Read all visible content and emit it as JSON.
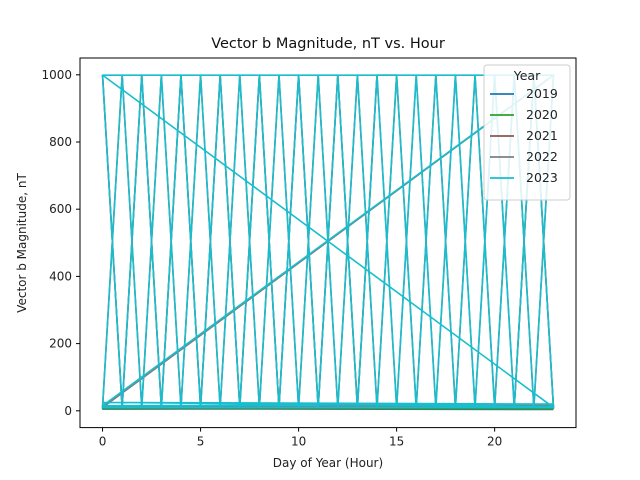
{
  "chart_data": {
    "type": "line",
    "title": "Vector b Magnitude, nT vs. Hour",
    "xlabel": "Day of Year (Hour)",
    "ylabel": "Vector b Magnitude, nT",
    "xlim": [
      -1.15,
      24.15
    ],
    "ylim": [
      -50,
      1050
    ],
    "xticks": [
      0,
      5,
      10,
      15,
      20
    ],
    "yticks": [
      0,
      200,
      400,
      600,
      800,
      1000
    ],
    "grid": false,
    "legend": {
      "title": "Year",
      "placement": "upper-right"
    },
    "series": [
      {
        "name": "2019",
        "color": "#1f77b4",
        "x": [
          0,
          23,
          0,
          23
        ],
        "y": [
          5,
          8,
          6,
          4
        ]
      },
      {
        "name": "2020",
        "color": "#2ca02c",
        "x": [
          0,
          23,
          0,
          23
        ],
        "y": [
          7,
          9,
          8,
          6
        ]
      },
      {
        "name": "2021",
        "color": "#8c564b",
        "x": [
          0,
          1,
          2,
          3,
          4,
          5,
          6,
          7,
          8,
          9,
          10,
          11,
          12,
          13,
          14,
          15,
          16,
          17,
          18,
          19,
          20,
          21,
          22,
          23,
          0,
          1,
          2,
          3,
          4,
          5,
          6,
          7,
          8,
          9,
          10,
          11,
          12,
          13,
          14,
          15,
          16,
          17,
          18,
          19,
          20,
          21,
          22,
          23
        ],
        "y": [
          999,
          10,
          999,
          10,
          999,
          10,
          999,
          10,
          999,
          10,
          999,
          10,
          999,
          10,
          999,
          999,
          10,
          999,
          10,
          999,
          10,
          999,
          10,
          999,
          10,
          999,
          10,
          999,
          10,
          999,
          10,
          999,
          10,
          999,
          10,
          999,
          10,
          999,
          10,
          999,
          10,
          999,
          10,
          999,
          10,
          10,
          999,
          10
        ]
      },
      {
        "name": "2022",
        "color": "#7f7f7f",
        "x": [
          0,
          1,
          2,
          3,
          4,
          5,
          6,
          7,
          8,
          9,
          10,
          11,
          12,
          13,
          14,
          15,
          16,
          17,
          18,
          19,
          20,
          21,
          22,
          23,
          0,
          23,
          0,
          23
        ],
        "y": [
          999,
          10,
          999,
          10,
          999,
          10,
          999,
          10,
          999,
          10,
          999,
          10,
          999,
          10,
          999,
          10,
          999,
          10,
          999,
          10,
          999,
          10,
          999,
          10,
          10,
          999,
          12,
          15
        ]
      },
      {
        "name": "2023",
        "color": "#17becf",
        "x": [
          0,
          23,
          0,
          1,
          2,
          3,
          4,
          5,
          6,
          7,
          8,
          9,
          10,
          11,
          12,
          13,
          14,
          15,
          16,
          17,
          18,
          19,
          20,
          21,
          22,
          23,
          0,
          1,
          2,
          3,
          4,
          5,
          6,
          7,
          8,
          9,
          10,
          11,
          12,
          13,
          14,
          15,
          16,
          17,
          18,
          19,
          20,
          21,
          22,
          23,
          0,
          23,
          0,
          23,
          0,
          23
        ],
        "y": [
          999,
          10,
          10,
          999,
          10,
          999,
          10,
          999,
          10,
          999,
          10,
          999,
          10,
          999,
          10,
          999,
          10,
          999,
          10,
          999,
          10,
          999,
          10,
          999,
          10,
          999,
          999,
          10,
          999,
          10,
          999,
          10,
          999,
          10,
          999,
          10,
          999,
          10,
          999,
          10,
          999,
          10,
          999,
          10,
          999,
          10,
          999,
          10,
          999,
          10,
          999,
          999,
          15,
          20,
          25,
          12
        ]
      }
    ]
  }
}
